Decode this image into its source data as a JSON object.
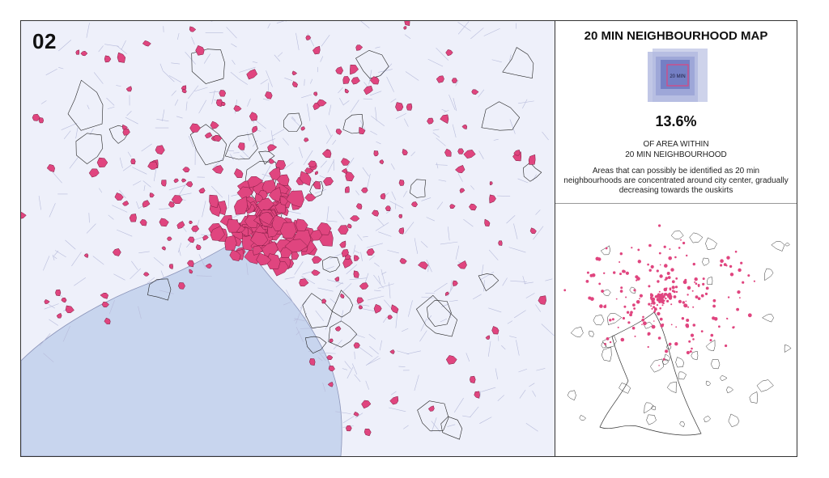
{
  "badge": "02",
  "panel": {
    "title": "20 MIN NEIGHBOURHOOD MAP",
    "legend_label": "20 MIN",
    "percent": "13.6%",
    "caption_line1": "OF AREA WITHIN",
    "caption_line2": "20 MIN NEIGHBOURHOOD",
    "description": "Areas that can possibly be identified as 20 min neighbourhoods are concentrated around city center, gradually decreasing towards the ouskirts"
  },
  "colors": {
    "land": "#eef0fa",
    "water": "#c8d5ee",
    "urban_grid": "#b8bcdb",
    "neighbourhood": "#e0457f",
    "outline": "#222222",
    "legend_outer": "#c5cbe8",
    "legend_mid": "#9aa3d6",
    "legend_inner": "#6f7bc2"
  },
  "icons": {
    "legend": "nested-square-legend-icon"
  }
}
